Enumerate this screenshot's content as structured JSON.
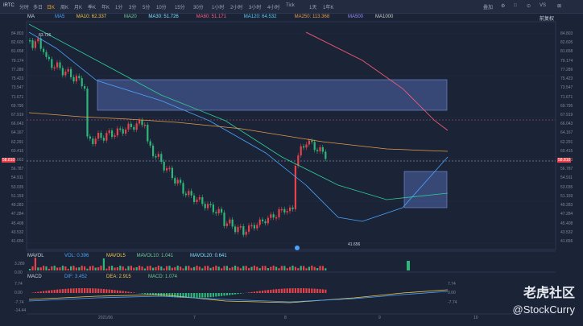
{
  "topbar": {
    "symbol": "IRTC",
    "timeframes": [
      "分时",
      "多日",
      "日K",
      "周K",
      "月K",
      "季K",
      "年K",
      "1分",
      "3分",
      "5分",
      "10分",
      "15分",
      "30分",
      "1小时",
      "2小时",
      "3小时",
      "4小时",
      "Tick",
      "1天",
      "1年K"
    ],
    "active_timeframe": "日K",
    "right_items": [
      "叠加",
      "⚙",
      "□",
      "⊙",
      "VS",
      "⊠"
    ]
  },
  "main_indicators": {
    "label": "MA",
    "items": [
      "MA5",
      "MA10: 62.337",
      "MA20",
      "MA30: 51.726",
      "MA60: 51.171",
      "MA120: 64.532",
      "MA250: 113.368",
      "MA500",
      "MA1000"
    ],
    "highlight": "83.726",
    "right_label": "前复权"
  },
  "price_axis": [
    "84.803",
    "82.605",
    "81.658",
    "79.174",
    "77.289",
    "75.423",
    "73.547",
    "71.671",
    "69.795",
    "67.919",
    "66.043",
    "64.167",
    "62.291",
    "60.415",
    "58.663",
    "56.787",
    "54.911",
    "53.035",
    "51.159",
    "49.283",
    "47.284",
    "45.408",
    "43.532",
    "41.656"
  ],
  "current_price": "58.810",
  "low_marker": "41.656",
  "vol_indicators": {
    "label": "MAVOL",
    "items": [
      "VOL: 0.396",
      "MAVOL5",
      "MAVOL10: 1.041",
      "MAVOL20: 0.641"
    ]
  },
  "vol_axis": [
    "3.289",
    "0.00"
  ],
  "macd_indicators": {
    "label": "MACD",
    "items": [
      "DIF: 3.452",
      "DEA: 2.915",
      "MACD: 1.074"
    ]
  },
  "macd_axis": [
    "7.74",
    "0.00",
    "-7.74",
    "-14.44"
  ],
  "macd_axis_right": [
    "7.74",
    "0.00",
    "-7.74"
  ],
  "time_axis": [
    "2021/06",
    "7",
    "8",
    "9",
    "10"
  ],
  "watermark": {
    "brand": "老虎社区",
    "user": "@StockCurry"
  },
  "colors": {
    "up": "#e6424b",
    "down": "#2db87a",
    "ma10": "#4aa3ff",
    "ma30": "#2ecc9a",
    "ma120": "#ff5c7a",
    "box": "#5b75c7"
  }
}
